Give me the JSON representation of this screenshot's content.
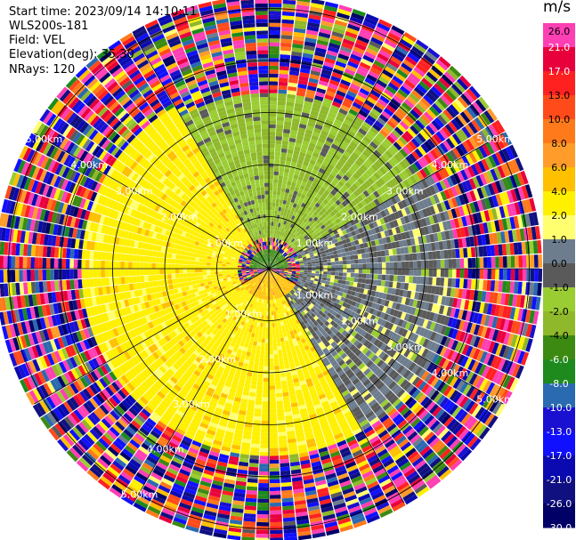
{
  "header": {
    "start_time": "Start time: 2023/09/14 14:10:11",
    "instrument": "WLS200s-181",
    "field": "Field: VEL",
    "elevation": "Elevation(deg): 35.30",
    "nrays": "NRays: 120"
  },
  "colorbar": {
    "unit": "m/s",
    "ticks": [
      "26.0",
      "21.0",
      "17.0",
      "13.0",
      "10.0",
      "8.0",
      "6.0",
      "4.0",
      "2.0",
      "1.0",
      "0.0",
      "-1.0",
      "-2.0",
      "-4.0",
      "-6.0",
      "-8.0",
      "-10.0",
      "-13.0",
      "-17.0",
      "-21.0",
      "-26.0",
      "-30.0"
    ],
    "colors": [
      "#ff3fb4",
      "#e8003c",
      "#ff2020",
      "#ff4a1a",
      "#ff7a1a",
      "#ff9c2a",
      "#ffc000",
      "#fff000",
      "#ffff70",
      "#6d7d8d",
      "#5a5a5a",
      "#9acd32",
      "#8fb82a",
      "#3c8a12",
      "#1e8a1e",
      "#2a6ab0",
      "#1a10d0",
      "#1010ff",
      "#0a0ab0",
      "#101080",
      "#000066"
    ]
  },
  "chart_data": {
    "type": "polar_ppi",
    "field": "VEL",
    "units": "m/s",
    "nrays": 120,
    "elevation_deg": 35.3,
    "range_rings_km": [
      1.0,
      2.0,
      3.0,
      4.0,
      5.0
    ],
    "range_ring_labels": [
      "1.00km",
      "2.00km",
      "3.00km",
      "4.00km",
      "5.00km"
    ],
    "max_range_km": 5.2,
    "radial_lines_deg": [
      0,
      30,
      60,
      90,
      120,
      150,
      180,
      210,
      240,
      270,
      300,
      330
    ],
    "vmin": -30.0,
    "vmax": 30.0,
    "velocity_regions": [
      {
        "description": "center green (toward)",
        "range_km": [
          0,
          0.4
        ],
        "azimuth_deg": [
          270,
          90
        ],
        "value": -5
      },
      {
        "description": "orange core",
        "range_km": [
          0,
          0.6
        ],
        "azimuth_deg": [
          120,
          240
        ],
        "value": 5
      },
      {
        "description": "yellow south",
        "range_km": [
          0.6,
          3.6
        ],
        "azimuth_deg": [
          150,
          330
        ],
        "value": 3
      },
      {
        "description": "green north",
        "range_km": [
          0.6,
          3.4
        ],
        "azimuth_deg": [
          300,
          60
        ],
        "value": -2
      },
      {
        "description": "grey transition",
        "range_km": [
          0.6,
          3.6
        ],
        "azimuth_deg": [
          60,
          150
        ],
        "value": 0
      },
      {
        "description": "noise (random velocities)",
        "range_km": [
          3.6,
          5.2
        ],
        "azimuth_deg": [
          0,
          360
        ],
        "value": null
      }
    ]
  }
}
